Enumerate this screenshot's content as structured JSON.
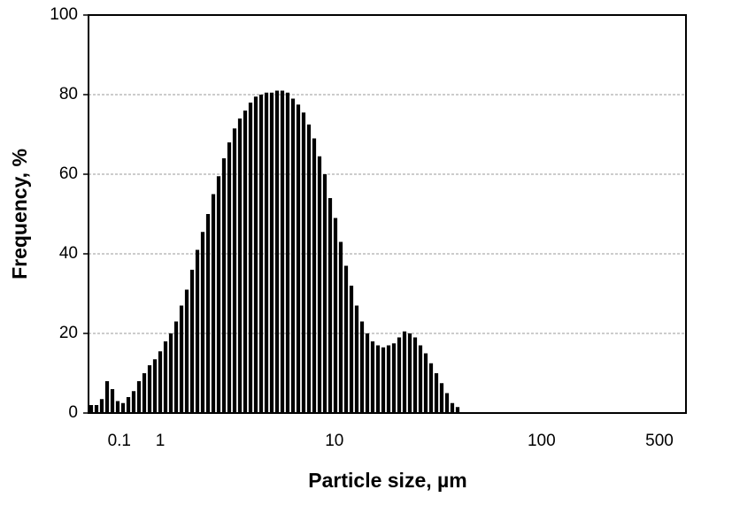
{
  "chart_data": {
    "type": "bar",
    "xlabel": "Particle size, µm",
    "ylabel": "Frequency, %",
    "color": "#000000",
    "categories": [
      null,
      null,
      null,
      null,
      null,
      null,
      null,
      null,
      null,
      null,
      null,
      null,
      null,
      null,
      null,
      null,
      null,
      null,
      null,
      null,
      null,
      null,
      null,
      null,
      null,
      null,
      null,
      null,
      null,
      null,
      null,
      null,
      null,
      null,
      null,
      null,
      null,
      null,
      null,
      null,
      null,
      null,
      null,
      null,
      null,
      null,
      null,
      null,
      null,
      null,
      null,
      null,
      null,
      null,
      null,
      null,
      null,
      null,
      null,
      null,
      null,
      null,
      null,
      null,
      null,
      null,
      null,
      null,
      null,
      null
    ],
    "values": [
      2,
      2,
      3.5,
      8,
      6,
      3,
      2.5,
      4,
      5.5,
      8,
      10,
      12,
      13.5,
      15.5,
      18,
      20,
      23,
      27,
      31,
      36,
      41,
      45.5,
      50,
      55,
      59.5,
      64,
      68,
      71.5,
      74,
      76,
      78,
      79.5,
      80,
      80.5,
      80.5,
      81,
      81,
      80.5,
      79,
      77.5,
      75.5,
      72.5,
      69,
      64.5,
      60,
      54,
      49,
      43,
      37,
      32,
      27,
      23,
      20,
      18,
      17,
      16.5,
      17,
      17.5,
      19,
      20.5,
      20,
      19,
      17,
      15,
      12.5,
      10,
      7.5,
      5,
      2.5,
      1.5
    ],
    "xlim": [
      0,
      112.5
    ],
    "xticks": [
      {
        "value": 5.8,
        "label": "0.1"
      },
      {
        "value": 13.5,
        "label": "1"
      },
      {
        "value": 46.3,
        "label": "10"
      },
      {
        "value": 85.3,
        "label": "100"
      },
      {
        "value": 107.5,
        "label": "500"
      }
    ],
    "ylim": [
      0,
      100
    ],
    "yticks": [
      0,
      20,
      40,
      60,
      80,
      100
    ],
    "grid": true
  }
}
